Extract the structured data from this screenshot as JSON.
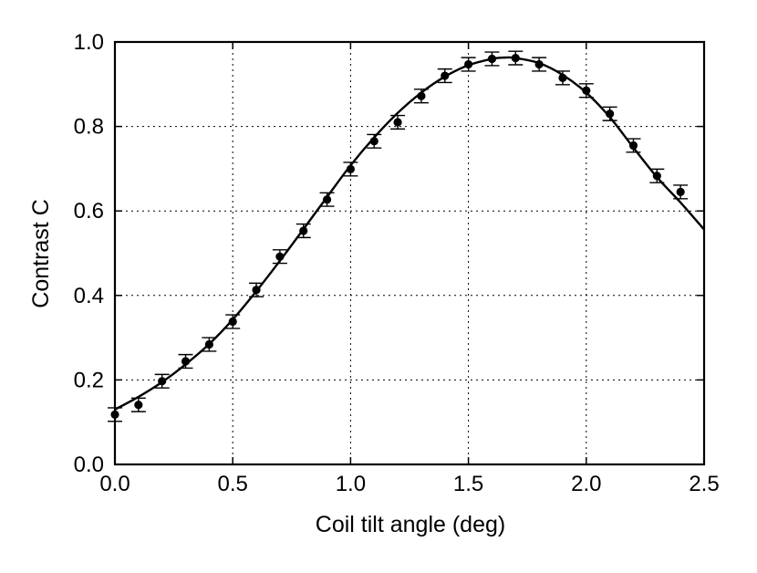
{
  "chart_data": {
    "type": "scatter",
    "title": "",
    "xlabel": "Coil tilt angle (deg)",
    "ylabel": "Contrast C",
    "xlim": [
      0.0,
      2.5
    ],
    "ylim": [
      0.0,
      1.0
    ],
    "xticks": [
      "0.0",
      "0.5",
      "1.0",
      "1.5",
      "2.0",
      "2.5"
    ],
    "yticks": [
      "0.0",
      "0.2",
      "0.4",
      "0.6",
      "0.8",
      "1.0"
    ],
    "grid": true,
    "legend": "none",
    "colors": {
      "marker": "#000000",
      "line": "#000000",
      "grid": "#000000"
    },
    "series": [
      {
        "kind": "points-with-errorbars",
        "x": [
          0.0,
          0.1,
          0.2,
          0.3,
          0.4,
          0.5,
          0.6,
          0.7,
          0.8,
          0.9,
          1.0,
          1.1,
          1.2,
          1.3,
          1.4,
          1.5,
          1.6,
          1.7,
          1.8,
          1.9,
          2.0,
          2.1,
          2.2,
          2.3,
          2.4
        ],
        "y": [
          0.118,
          0.141,
          0.197,
          0.244,
          0.284,
          0.338,
          0.413,
          0.492,
          0.553,
          0.627,
          0.699,
          0.765,
          0.81,
          0.872,
          0.92,
          0.947,
          0.96,
          0.962,
          0.947,
          0.915,
          0.885,
          0.83,
          0.755,
          0.683,
          0.645
        ],
        "yerr": 0.016
      },
      {
        "kind": "fit-line",
        "x": [
          0.0,
          0.1,
          0.2,
          0.3,
          0.4,
          0.5,
          0.6,
          0.7,
          0.8,
          0.9,
          1.0,
          1.1,
          1.2,
          1.3,
          1.4,
          1.5,
          1.6,
          1.65,
          1.7,
          1.8,
          1.9,
          2.0,
          2.1,
          2.2,
          2.3,
          2.4,
          2.5
        ],
        "y": [
          0.13,
          0.16,
          0.195,
          0.237,
          0.285,
          0.343,
          0.41,
          0.482,
          0.557,
          0.633,
          0.708,
          0.774,
          0.832,
          0.88,
          0.918,
          0.945,
          0.96,
          0.963,
          0.962,
          0.95,
          0.922,
          0.88,
          0.822,
          0.75,
          0.68,
          0.62,
          0.556
        ]
      }
    ]
  }
}
